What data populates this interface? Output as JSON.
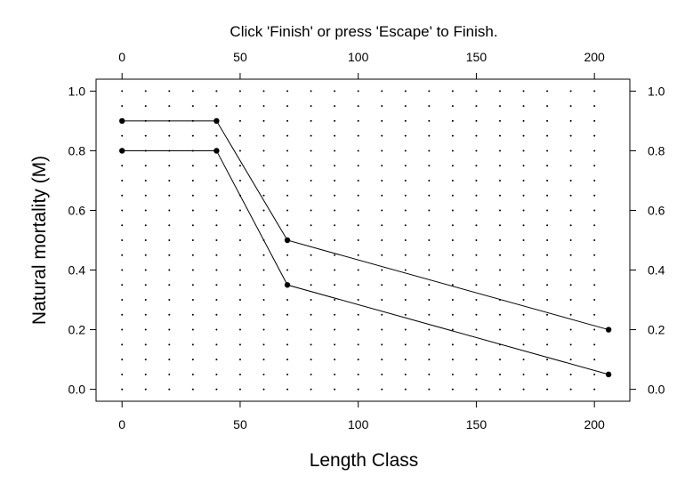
{
  "chart_data": {
    "type": "line",
    "title": "Click 'Finish' or press 'Escape' to Finish.",
    "xlabel": "Length Class",
    "ylabel": "Natural mortality (M)",
    "xlim": [
      -11,
      215
    ],
    "ylim": [
      -0.04,
      1.04
    ],
    "x_ticks": [
      0,
      50,
      100,
      150,
      200
    ],
    "y_ticks": [
      0.0,
      0.2,
      0.4,
      0.6,
      0.8,
      1.0
    ],
    "x_tick_labels": [
      "0",
      "50",
      "100",
      "150",
      "200"
    ],
    "y_tick_labels": [
      "0.0",
      "0.2",
      "0.4",
      "0.6",
      "0.8",
      "1.0"
    ],
    "grid": "dots",
    "series": [
      {
        "x": [
          0,
          40,
          70,
          206
        ],
        "values": [
          0.9,
          0.9,
          0.5,
          0.2
        ]
      },
      {
        "x": [
          0,
          40,
          70,
          206
        ],
        "values": [
          0.8,
          0.8,
          0.35,
          0.05
        ]
      }
    ]
  }
}
